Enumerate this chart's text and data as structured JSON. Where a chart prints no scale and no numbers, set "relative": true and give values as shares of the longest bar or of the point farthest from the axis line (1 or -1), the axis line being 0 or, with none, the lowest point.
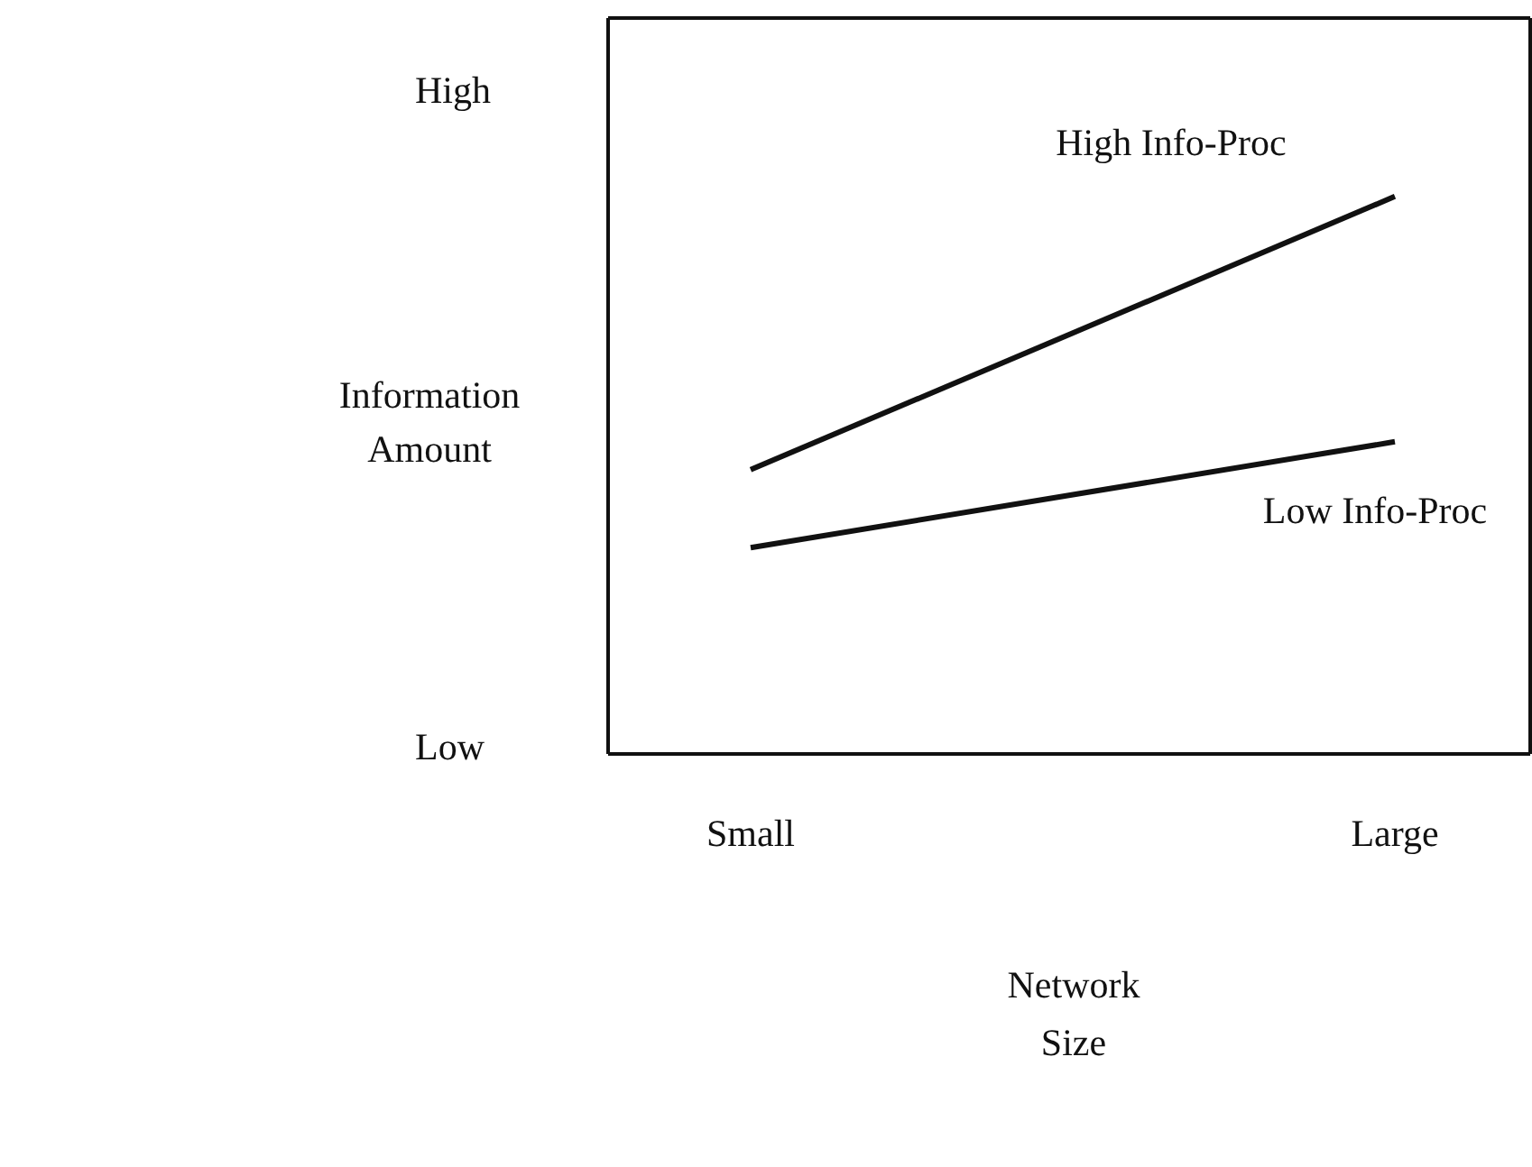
{
  "chart_data": {
    "type": "line",
    "relative": true,
    "xlabel": "Network Size",
    "ylabel": "Information Amount",
    "categories": [
      "Small",
      "Large"
    ],
    "series": [
      {
        "name": "High Info-Proc",
        "color": "#111111",
        "values": [
          0.51,
          1
        ]
      },
      {
        "name": "Low Info-Proc",
        "color": "#111111",
        "values": [
          0.37,
          0.56
        ]
      }
    ],
    "annotations": [
      "High",
      "Low"
    ],
    "marker": "none",
    "line_style": "solid",
    "grid": false
  }
}
